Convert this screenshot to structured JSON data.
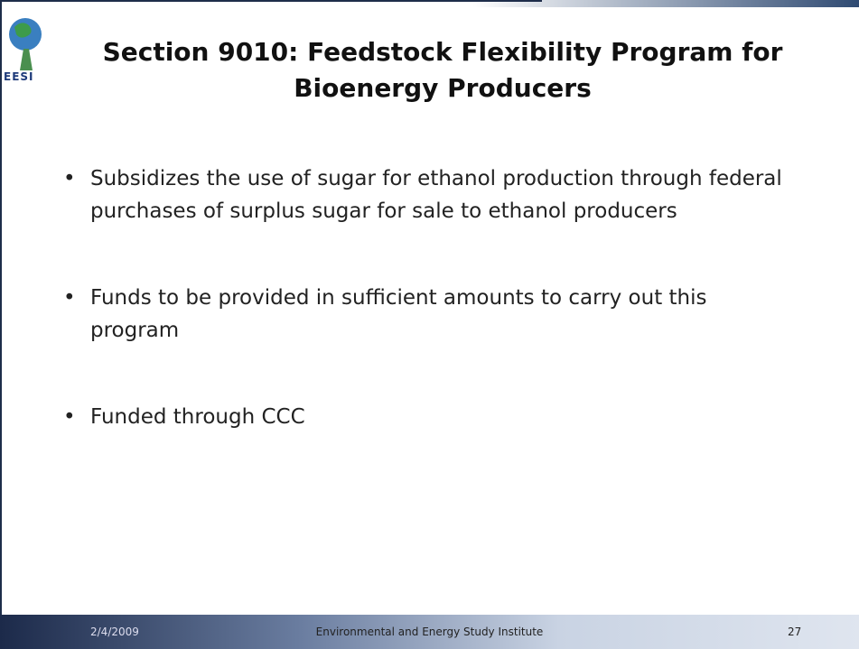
{
  "logo": {
    "text": "EESI"
  },
  "header": {
    "title": "Section 9010: Feedstock Flexibility Program for Bioenergy Producers"
  },
  "bullets": [
    "Subsidizes the use of sugar for ethanol production through federal purchases of surplus sugar for sale to ethanol producers",
    "Funds to be provided in sufficient amounts to carry out this program",
    "Funded through CCC"
  ],
  "footer": {
    "date": "2/4/2009",
    "organization": "Environmental and Energy Study Institute",
    "page": "27"
  }
}
